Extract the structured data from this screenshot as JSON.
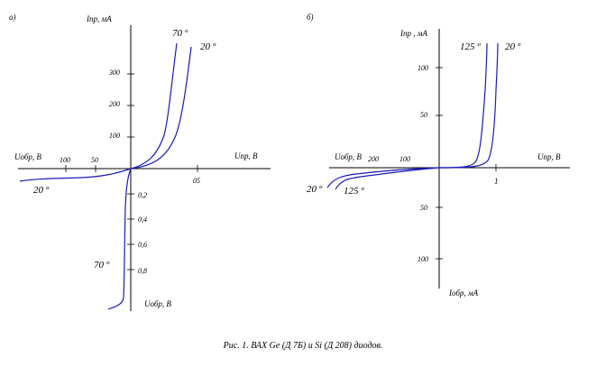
{
  "caption": "Рис. 1. ВАХ Ge (Д 7Б) и Si (Д 208) диодов.",
  "chart_data": [
    {
      "type": "line",
      "panel_label": "а)",
      "xlabel_forward": "Uпр, В",
      "xlabel_reverse_left": "Uобр, В",
      "ylabel_forward": "Iпр, мА",
      "ylabel_reverse_bottom": "Uобр, В",
      "x_reverse_ticks": [
        "100",
        "50"
      ],
      "x_forward_ticks": [
        "05"
      ],
      "y_forward_ticks": [
        "100",
        "200",
        "300"
      ],
      "y_reverse_ticks": [
        "0,2",
        "0,4",
        "0,6",
        "0,8"
      ],
      "annotations": [
        "70 º",
        "20 º",
        "20 º",
        "70 º"
      ],
      "series": [
        {
          "name": "70 º",
          "forward": [
            [
              0,
              0
            ],
            [
              0.1,
              15
            ],
            [
              0.2,
              60
            ],
            [
              0.25,
              130
            ],
            [
              0.3,
              250
            ],
            [
              0.34,
              400
            ]
          ],
          "reverse_current": [
            [
              0,
              0
            ],
            [
              0.05,
              0.2
            ],
            [
              0.3,
              0.3
            ],
            [
              0.9,
              0.35
            ],
            [
              1.1,
              0.4
            ]
          ]
        },
        {
          "name": "20 º",
          "forward": [
            [
              0,
              0
            ],
            [
              0.15,
              10
            ],
            [
              0.3,
              60
            ],
            [
              0.38,
              150
            ],
            [
              0.42,
              300
            ],
            [
              0.45,
              400
            ]
          ],
          "reverse_voltage": [
            [
              0,
              0
            ],
            [
              -20,
              -0.02
            ],
            [
              -60,
              -0.08
            ],
            [
              -120,
              -0.12
            ],
            [
              -170,
              -0.16
            ]
          ]
        }
      ]
    },
    {
      "type": "line",
      "panel_label": "б)",
      "xlabel_forward": "Uпр, В",
      "xlabel_reverse_left": "Uобр, В",
      "ylabel_forward": "Iпр , мА",
      "ylabel_reverse_bottom": "Iобр, мА",
      "x_reverse_ticks": [
        "200",
        "100"
      ],
      "x_forward_ticks": [
        "1"
      ],
      "y_forward_ticks": [
        "50",
        "100"
      ],
      "y_reverse_ticks": [
        "50",
        "100"
      ],
      "annotations": [
        "125 º",
        "20 º",
        "20 º",
        "125 º"
      ],
      "series": [
        {
          "name": "125 º",
          "forward": [
            [
              0,
              0
            ],
            [
              0.5,
              0.5
            ],
            [
              0.65,
              5
            ],
            [
              0.75,
              40
            ],
            [
              0.8,
              80
            ],
            [
              0.85,
              130
            ]
          ],
          "reverse": [
            [
              0,
              0
            ],
            [
              -100,
              -5
            ],
            [
              -200,
              -12
            ],
            [
              -230,
              -18
            ],
            [
              -250,
              -25
            ]
          ]
        },
        {
          "name": "20 º",
          "forward": [
            [
              0,
              0
            ],
            [
              0.6,
              0.5
            ],
            [
              0.8,
              8
            ],
            [
              0.9,
              40
            ],
            [
              0.95,
              90
            ],
            [
              1.0,
              130
            ]
          ],
          "reverse": [
            [
              0,
              0
            ],
            [
              -100,
              -3
            ],
            [
              -200,
              -8
            ],
            [
              -240,
              -12
            ],
            [
              -270,
              -20
            ]
          ]
        }
      ]
    }
  ]
}
